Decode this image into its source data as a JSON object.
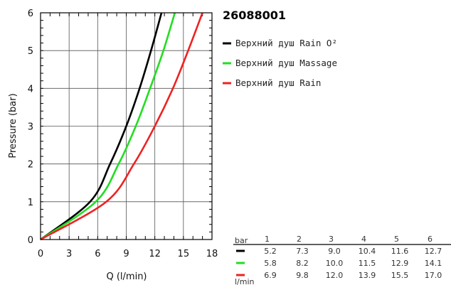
{
  "chart_data": {
    "type": "line",
    "title": "26088001",
    "xlabel": "Q (l/min)",
    "ylabel": "Pressure (bar)",
    "xlim": [
      0,
      18
    ],
    "ylim": [
      0,
      6
    ],
    "xticks": [
      0,
      3,
      6,
      9,
      12,
      15,
      18
    ],
    "yticks": [
      0,
      1,
      2,
      3,
      4,
      5,
      6
    ],
    "grid": true,
    "legend_position": "right",
    "series": [
      {
        "name": "Верхний душ Rain O²",
        "color": "#000000",
        "x": [
          0,
          5.2,
          7.3,
          9.0,
          10.4,
          11.6,
          12.7
        ],
        "y": [
          0,
          1,
          2,
          3,
          4,
          5,
          6
        ]
      },
      {
        "name": "Верхний душ Massage",
        "color": "#22dd22",
        "x": [
          0,
          5.8,
          8.2,
          10.0,
          11.5,
          12.9,
          14.1
        ],
        "y": [
          0,
          1,
          2,
          3,
          4,
          5,
          6
        ]
      },
      {
        "name": "Верхний душ Rain",
        "color": "#ee2222",
        "x": [
          0,
          6.9,
          9.8,
          12.0,
          13.9,
          15.5,
          17.0
        ],
        "y": [
          0,
          1,
          2,
          3,
          4,
          5,
          6
        ]
      }
    ],
    "table": {
      "unit_top": "bar",
      "unit_bottom": "l/min",
      "pressures": [
        "1",
        "2",
        "3",
        "4",
        "5",
        "6"
      ],
      "rows": [
        {
          "color": "#000000",
          "values": [
            "5.2",
            "7.3",
            "9.0",
            "10.4",
            "11.6",
            "12.7"
          ]
        },
        {
          "color": "#22dd22",
          "values": [
            "5.8",
            "8.2",
            "10.0",
            "11.5",
            "12.9",
            "14.1"
          ]
        },
        {
          "color": "#ee2222",
          "values": [
            "6.9",
            "9.8",
            "12.0",
            "13.9",
            "15.5",
            "17.0"
          ]
        }
      ]
    }
  }
}
